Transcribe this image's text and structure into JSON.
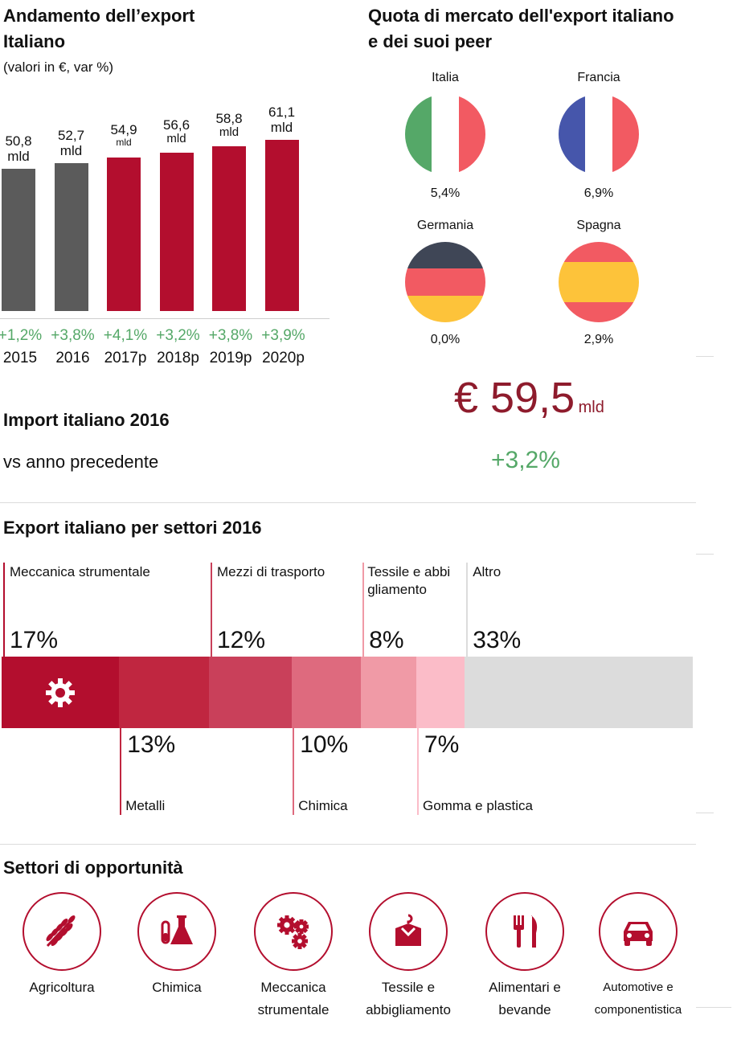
{
  "export_section": {
    "title_line1": "Andamento dell’export",
    "title_line2": "Italiano",
    "subtitle": "(valori in €, var %)"
  },
  "chart_data": {
    "type": "bar",
    "categories": [
      "2015",
      "2016",
      "2017p",
      "2018p",
      "2019p",
      "2020p"
    ],
    "values": [
      50.8,
      52.7,
      54.9,
      56.6,
      58.8,
      61.1
    ],
    "value_labels": [
      "50,8",
      "52,7",
      "54,9",
      "56,6",
      "58,8",
      "61,1"
    ],
    "unit_label": "mld",
    "growth_labels": [
      "+1,2%",
      "+3,8%",
      "+4,1%",
      "+3,2%",
      "+3,8%",
      "+3,9%"
    ],
    "colors": [
      "#5b5b5b",
      "#5b5b5b",
      "#b30e2e",
      "#b30e2e",
      "#b30e2e",
      "#b30e2e"
    ],
    "growth_color": "#55a868",
    "ylim": [
      0,
      65
    ]
  },
  "market_share": {
    "title_line1": "Quota di mercato dell'export italiano",
    "title_line2": "e dei suoi peer",
    "countries": [
      {
        "name": "Italia",
        "share": "5,4%",
        "colors": [
          "#55a868",
          "#ffffff",
          "#f25a62"
        ],
        "orientation": "vertical"
      },
      {
        "name": "Francia",
        "share": "6,9%",
        "colors": [
          "#4656ab",
          "#ffffff",
          "#f25a62"
        ],
        "orientation": "vertical"
      },
      {
        "name": "Germania",
        "share": "0,0%",
        "colors": [
          "#3f4656",
          "#f25a62",
          "#fdc33a"
        ],
        "orientation": "horizontal"
      },
      {
        "name": "Spagna",
        "share": "2,9%",
        "colors": [
          "#f25a62",
          "#fdc33a",
          "#f25a62"
        ],
        "orientation": "horizontal"
      }
    ]
  },
  "import_section": {
    "title": "Import italiano 2016",
    "vs_text": "vs anno precedente",
    "value": "€ 59,5",
    "unit": "mld",
    "growth": "+3,2%"
  },
  "sectors": {
    "title": "Export italiano per settori 2016",
    "items": [
      {
        "label": "Meccanica strumentale",
        "pct": "17%",
        "value": 17,
        "color": "#b30e2e",
        "position": "top"
      },
      {
        "label": "Metalli",
        "pct": "13%",
        "value": 13,
        "color": "#c02640",
        "position": "bottom"
      },
      {
        "label": "Mezzi di trasporto",
        "pct": "12%",
        "value": 12,
        "color": "#c9405a",
        "position": "top"
      },
      {
        "label": "Chimica",
        "pct": "10%",
        "value": 10,
        "color": "#de6a7e",
        "position": "bottom"
      },
      {
        "label_line1": "Tessile e abbi",
        "label_line2": "gliamento",
        "pct": "8%",
        "value": 8,
        "color": "#f09aa6",
        "position": "top"
      },
      {
        "label": "Gomma e plastica",
        "pct": "7%",
        "value": 7,
        "color": "#fbbcc8",
        "position": "bottom"
      },
      {
        "label": "Altro",
        "pct": "33%",
        "value": 33,
        "color": "#dcdcdc",
        "position": "top"
      }
    ],
    "gear_icon": "gear-icon"
  },
  "opportunities": {
    "title": "Settori di opportunità",
    "accent": "#b30e2e",
    "items": [
      {
        "icon": "wheat-icon",
        "line1": "Agricoltura",
        "line2": ""
      },
      {
        "icon": "flask-icon",
        "line1": "Chimica",
        "line2": ""
      },
      {
        "icon": "gears-icon",
        "line1": "Meccanica",
        "line2": "strumentale"
      },
      {
        "icon": "clothes-icon",
        "line1": "Tessile e",
        "line2": "abbigliamento"
      },
      {
        "icon": "cutlery-icon",
        "line1": "Alimentari e",
        "line2": "bevande"
      },
      {
        "icon": "car-icon",
        "line1": "Automotive e",
        "line2": "componentistica"
      }
    ]
  }
}
